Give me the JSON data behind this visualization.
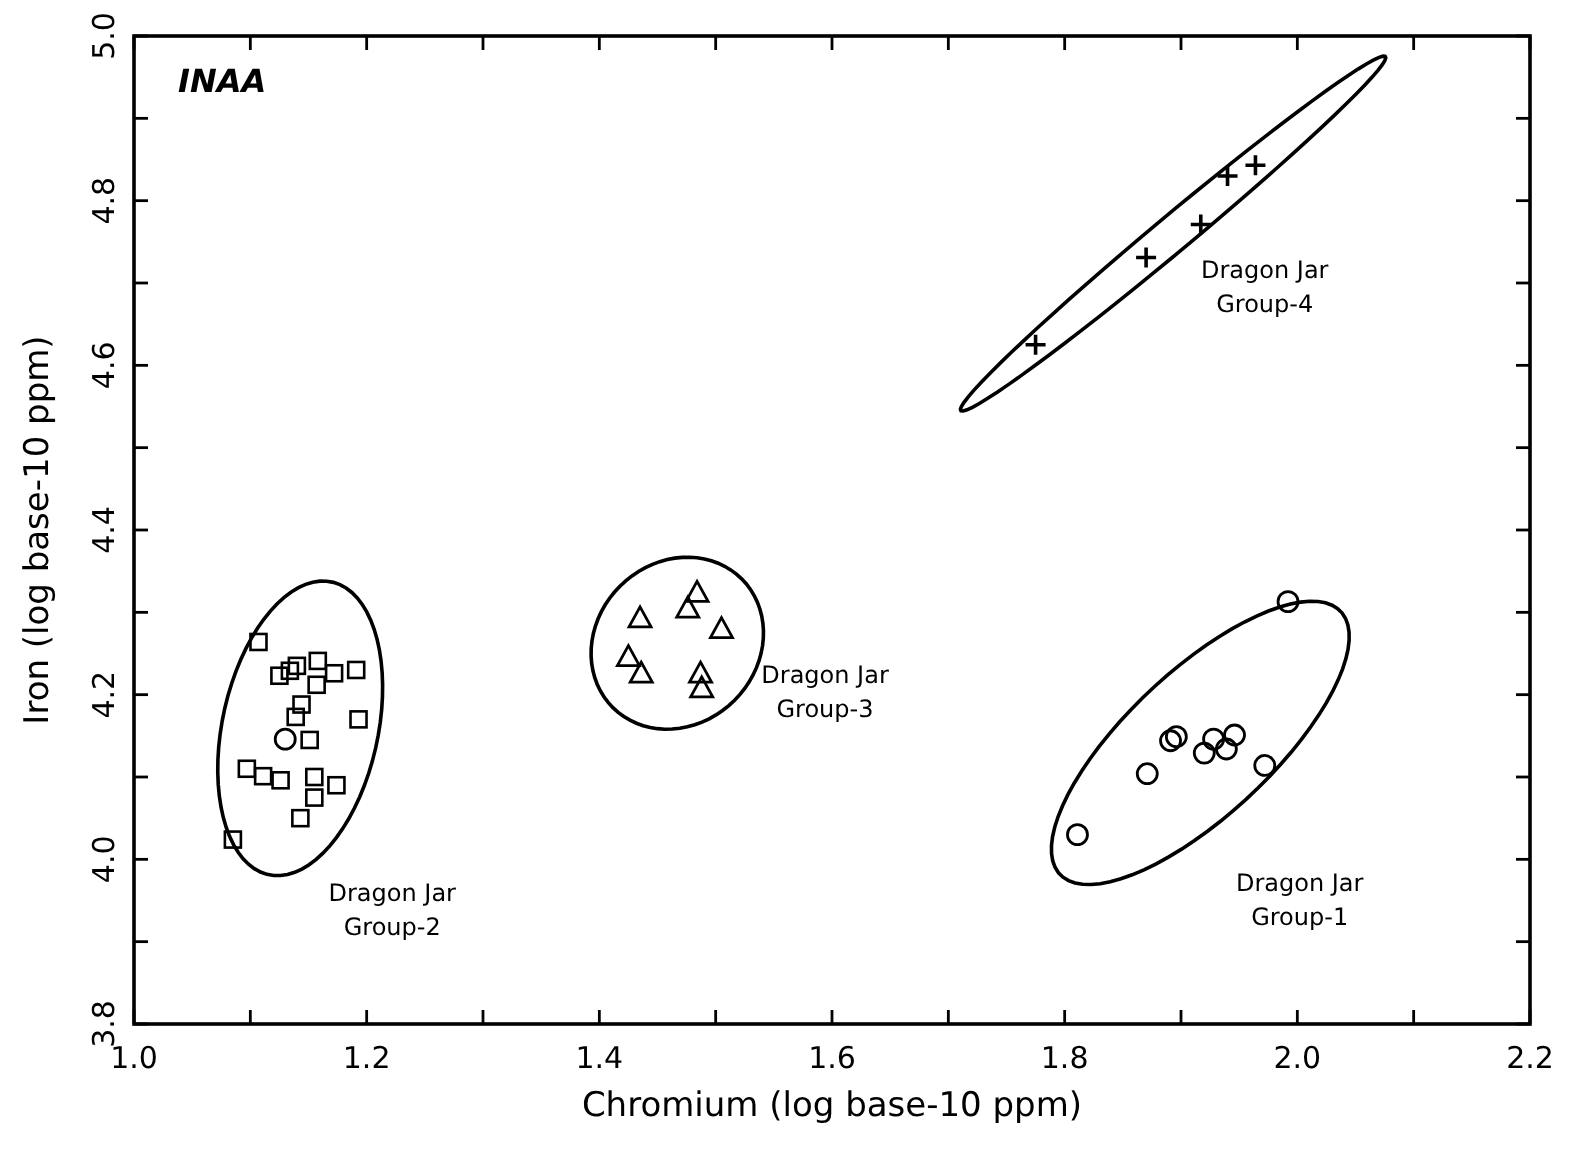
{
  "chart_data": {
    "type": "scatter",
    "xlabel": "Chromium (log base-10 ppm)",
    "ylabel": "Iron (log base-10 ppm)",
    "xlim": [
      1.0,
      2.2
    ],
    "ylim": [
      3.8,
      5.0
    ],
    "xticks": [
      {
        "value": 1.0,
        "label": "1.0"
      },
      {
        "value": 1.1,
        "label": null
      },
      1.2,
      {
        "value": 1.3,
        "label": null
      },
      1.4,
      {
        "value": 1.5,
        "label": null
      },
      1.6,
      {
        "value": 1.7,
        "label": null
      },
      1.8,
      {
        "value": 1.9,
        "label": null
      },
      {
        "value": 2.0,
        "label": "2.0"
      },
      {
        "value": 2.1,
        "label": null
      },
      2.2
    ],
    "yticks": [
      3.8,
      {
        "value": 3.9,
        "label": null
      },
      {
        "value": 4.0,
        "label": "4.0"
      },
      {
        "value": 4.1,
        "label": null
      },
      4.2,
      {
        "value": 4.3,
        "label": null
      },
      4.4,
      {
        "value": 4.5,
        "label": null
      },
      4.6,
      {
        "value": 4.7,
        "label": null
      },
      4.8,
      {
        "value": 4.9,
        "label": null
      },
      {
        "value": 5.0,
        "label": "5.0"
      }
    ],
    "grid": false,
    "series": [
      {
        "color": "#000000",
        "marker": "square",
        "x": [
          1.107,
          1.125,
          1.134,
          1.14,
          1.158,
          1.172,
          1.191,
          1.157,
          1.144,
          1.139,
          1.193,
          1.151,
          1.097,
          1.111,
          1.126,
          1.155,
          1.174,
          1.155,
          1.143,
          1.085
        ],
        "values": [
          4.264,
          4.223,
          4.229,
          4.235,
          4.241,
          4.226,
          4.23,
          4.212,
          4.188,
          4.173,
          4.17,
          4.145,
          4.11,
          4.101,
          4.096,
          4.1,
          4.09,
          4.075,
          4.05,
          4.024
        ]
      },
      {
        "color": "#000000",
        "marker": "circle",
        "x": [
          1.13
        ],
        "values": [
          4.146
        ]
      },
      {
        "color": "#000000",
        "marker": "triangle",
        "x": [
          1.435,
          1.425,
          1.436,
          1.484,
          1.476,
          1.505,
          1.487,
          1.488
        ],
        "values": [
          4.292,
          4.245,
          4.225,
          4.323,
          4.304,
          4.279,
          4.225,
          4.207
        ]
      },
      {
        "color": "#000000",
        "marker": "circle",
        "x": [
          1.811,
          1.871,
          1.891,
          1.896,
          1.92,
          1.928,
          1.939,
          1.946,
          1.972,
          1.992
        ],
        "values": [
          4.03,
          4.104,
          4.144,
          4.149,
          4.129,
          4.146,
          4.134,
          4.151,
          4.114,
          4.313
        ]
      },
      {
        "color": "#000000",
        "marker": "cross",
        "x": [
          1.775,
          1.87,
          1.917,
          1.94,
          1.964
        ],
        "values": [
          4.625,
          4.731,
          4.771,
          4.83,
          4.843
        ]
      }
    ],
    "annotations": [
      "INAA",
      "Dragon Jar\nGroup-2",
      "Dragon Jar\nGroup-3",
      "Dragon Jar\nGroup-1",
      "Dragon Jar\nGroup-4"
    ]
  }
}
